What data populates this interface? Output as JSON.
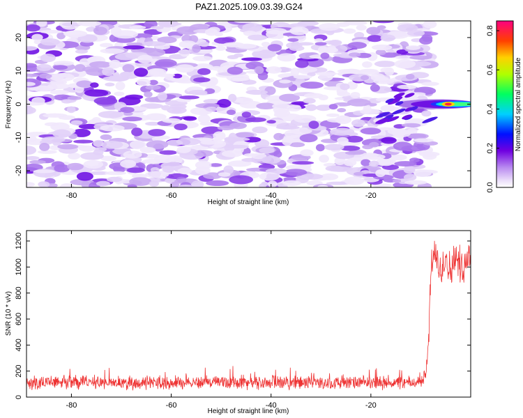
{
  "title": "PAZ1.2025.109.03.39.G24",
  "chart_data": [
    {
      "type": "heatmap",
      "xlabel": "Height of straight line (km)",
      "ylabel": "Frequency (Hz)",
      "xlim": [
        -89,
        0
      ],
      "ylim": [
        -25,
        25
      ],
      "xticks": [
        -80,
        -60,
        -40,
        -20
      ],
      "yticks": [
        -20,
        -10,
        0,
        10,
        20
      ],
      "colorbar": {
        "label": "Normalized spectral amplitude",
        "range": [
          0,
          0.85
        ],
        "ticks": [
          "0.0",
          "0.2",
          "0.4",
          "0.6",
          "0.8"
        ],
        "tick_values": [
          0,
          0.2,
          0.4,
          0.6,
          0.8
        ],
        "colormap": "rainbow-white"
      },
      "features": [
        {
          "x_start": -89,
          "x_end": -14,
          "freq_range": [
            -25,
            25
          ],
          "amplitude": 0.05,
          "pattern": "noise"
        },
        {
          "x_start": -14,
          "x_end": 0,
          "freq_center": 0,
          "amplitude_peak": 0.85,
          "pattern": "narrow carrier"
        }
      ]
    },
    {
      "type": "line",
      "xlabel": "Height of straight line (km)",
      "ylabel": "SNR (10 * v/v)",
      "xlim": [
        -89,
        0
      ],
      "ylim": [
        0,
        1280
      ],
      "xticks": [
        -80,
        -60,
        -40,
        -20
      ],
      "yticks": [
        0,
        200,
        400,
        600,
        800,
        1000,
        1200
      ],
      "series": [
        {
          "color": "#ee3333",
          "x": [
            -89,
            -80,
            -70,
            -60,
            -50,
            -40,
            -30,
            -20,
            -12,
            -10,
            -9,
            -8.5,
            -8,
            -7.5,
            -7,
            -6,
            -5,
            -4,
            -3,
            -2,
            -1,
            0
          ],
          "y": [
            110,
            115,
            110,
            110,
            115,
            110,
            110,
            110,
            110,
            120,
            170,
            400,
            900,
            1150,
            1050,
            950,
            1100,
            950,
            1100,
            1000,
            1050,
            1100
          ]
        }
      ]
    }
  ]
}
